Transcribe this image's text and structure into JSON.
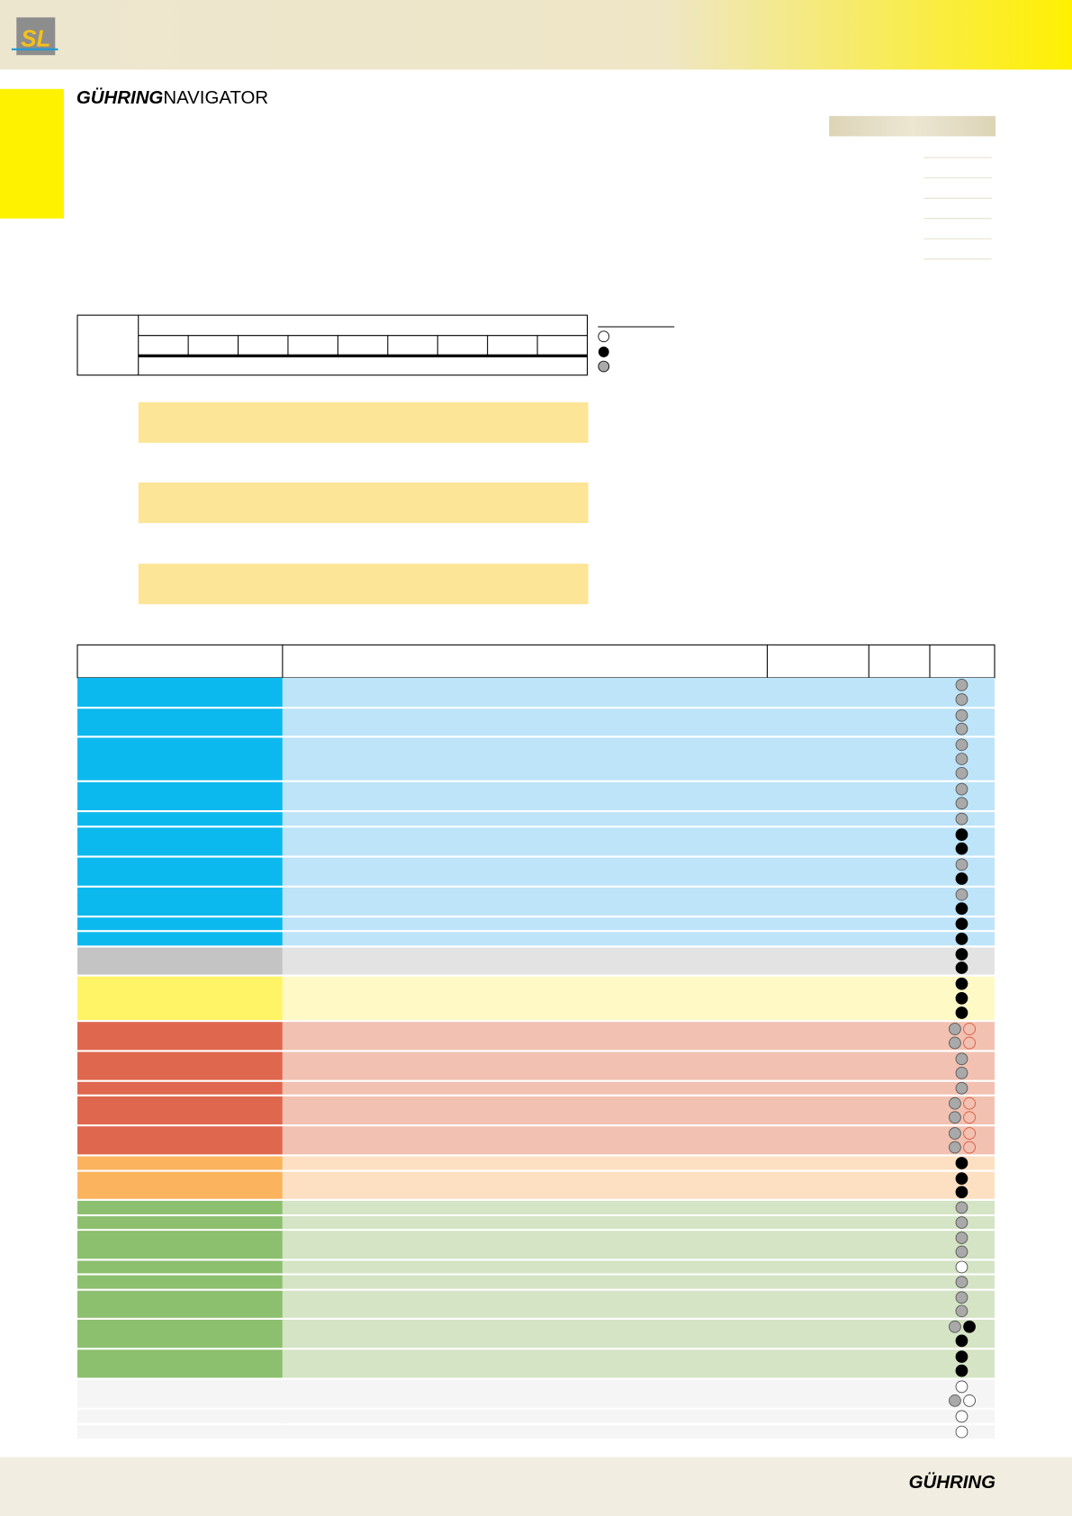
{
  "header": {
    "logo": "SL"
  },
  "brand": {
    "bold": "GÜHRING",
    "light": "NAVIGATOR"
  },
  "footer": {
    "brand": "GÜHRING"
  }
}
